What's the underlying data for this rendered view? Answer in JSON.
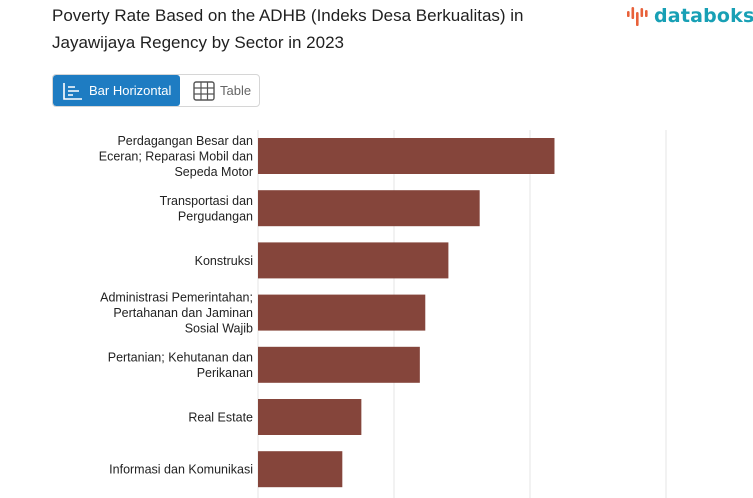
{
  "header": {
    "title": "Poverty Rate Based on the ADHB (Indeks Desa Berkualitas) in Jayawijaya Regency by Sector in 2023",
    "brand": "databoks"
  },
  "view_toggle": {
    "bar_label": "Bar Horizontal",
    "table_label": "Table"
  },
  "colors": {
    "bar": "#85453b",
    "accent": "#1e7cc2",
    "brand": "#18a0b5",
    "brand_dots": "#e8613a"
  },
  "chart_data": {
    "type": "bar",
    "orientation": "horizontal",
    "categories": [
      "Perdagangan Besar dan Eceran; Reparasi Mobil dan Sepeda Motor",
      "Transportasi dan Pergudangan",
      "Konstruksi",
      "Administrasi Pemerintahan; Pertahanan dan Jaminan Sosial Wajib",
      "Pertanian; Kehutanan dan Perikanan",
      "Real Estate",
      "Informasi dan Komunikasi"
    ],
    "category_lines": [
      [
        "Perdagangan Besar dan",
        "Eceran; Reparasi Mobil dan",
        "Sepeda Motor"
      ],
      [
        "Transportasi dan",
        "Pergudangan"
      ],
      [
        "Konstruksi"
      ],
      [
        "Administrasi Pemerintahan;",
        "Pertahanan dan Jaminan",
        "Sosial Wajib"
      ],
      [
        "Pertanian; Kehutanan dan",
        "Perikanan"
      ],
      [
        "Real Estate"
      ],
      [
        "Informasi dan Komunikasi"
      ]
    ],
    "values": [
      21.8,
      16.3,
      14.0,
      12.3,
      11.9,
      7.6,
      6.2
    ],
    "xlim": [
      0,
      30
    ],
    "gridlines": [
      0,
      10,
      20,
      30
    ],
    "grid": true,
    "title": "",
    "xlabel": "",
    "ylabel": ""
  }
}
